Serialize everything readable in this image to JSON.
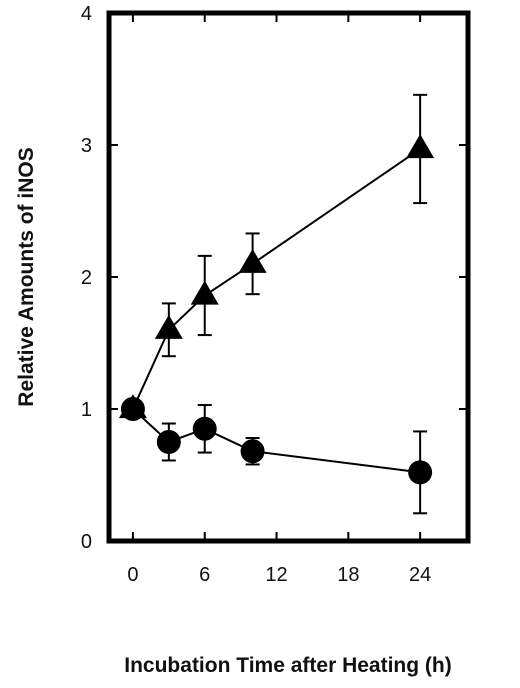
{
  "chart_data": {
    "type": "line",
    "title": "",
    "xlabel": "Incubation Time after Heating (h)",
    "ylabel": "Relative Amounts of iNOS",
    "xlim": [
      -2,
      28
    ],
    "ylim": [
      0,
      4
    ],
    "xticks": [
      0,
      6,
      12,
      18,
      24
    ],
    "yticks": [
      0,
      1,
      2,
      3,
      4
    ],
    "grid": false,
    "legend": "none",
    "series": [
      {
        "marker": "triangle",
        "x": [
          0,
          3,
          6,
          10,
          24
        ],
        "y": [
          1.0,
          1.6,
          1.86,
          2.1,
          2.97
        ],
        "err": [
          0.0,
          0.2,
          0.3,
          0.23,
          0.41
        ]
      },
      {
        "marker": "circle",
        "x": [
          0,
          3,
          6,
          10,
          24
        ],
        "y": [
          1.0,
          0.75,
          0.85,
          0.68,
          0.52
        ],
        "err": [
          0.0,
          0.14,
          0.18,
          0.1,
          0.31
        ]
      }
    ]
  }
}
